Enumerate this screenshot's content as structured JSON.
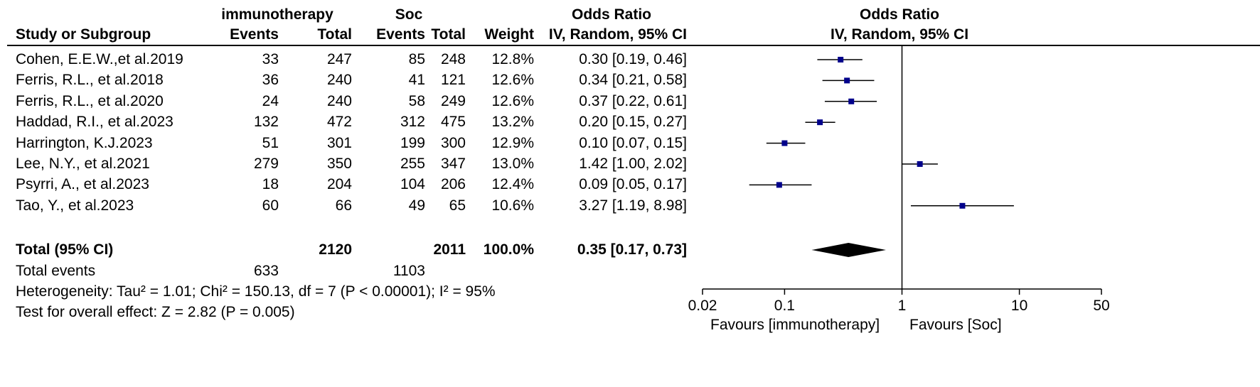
{
  "header": {
    "group1": "immunotherapy",
    "group2": "Soc",
    "or_col_title": "Odds Ratio",
    "plot_title": "Odds Ratio",
    "study_col": "Study or Subgroup",
    "events1": "Events",
    "total1": "Total",
    "events2": "Events",
    "total2": "Total",
    "weight": "Weight",
    "method": "IV, Random, 95% CI",
    "plot_method": "IV, Random, 95% CI"
  },
  "studies": [
    {
      "name": "Cohen, E.E.W.,et al.2019",
      "e1": "33",
      "t1": "247",
      "e2": "85",
      "t2": "248",
      "weight": "12.8%",
      "ci_text": "0.30 [0.19, 0.46]",
      "or": 0.3,
      "lo": 0.19,
      "hi": 0.46
    },
    {
      "name": "Ferris, R.L., et al.2018",
      "e1": "36",
      "t1": "240",
      "e2": "41",
      "t2": "121",
      "weight": "12.6%",
      "ci_text": "0.34 [0.21, 0.58]",
      "or": 0.34,
      "lo": 0.21,
      "hi": 0.58
    },
    {
      "name": "Ferris, R.L., et al.2020",
      "e1": "24",
      "t1": "240",
      "e2": "58",
      "t2": "249",
      "weight": "12.6%",
      "ci_text": "0.37 [0.22, 0.61]",
      "or": 0.37,
      "lo": 0.22,
      "hi": 0.61
    },
    {
      "name": "Haddad, R.I., et al.2023",
      "e1": "132",
      "t1": "472",
      "e2": "312",
      "t2": "475",
      "weight": "13.2%",
      "ci_text": "0.20 [0.15, 0.27]",
      "or": 0.2,
      "lo": 0.15,
      "hi": 0.27
    },
    {
      "name": "Harrington, K.J.2023",
      "e1": "51",
      "t1": "301",
      "e2": "199",
      "t2": "300",
      "weight": "12.9%",
      "ci_text": "0.10 [0.07, 0.15]",
      "or": 0.1,
      "lo": 0.07,
      "hi": 0.15
    },
    {
      "name": "Lee, N.Y., et al.2021",
      "e1": "279",
      "t1": "350",
      "e2": "255",
      "t2": "347",
      "weight": "13.0%",
      "ci_text": "1.42 [1.00, 2.02]",
      "or": 1.42,
      "lo": 1.0,
      "hi": 2.02
    },
    {
      "name": "Psyrri, A., et al.2023",
      "e1": "18",
      "t1": "204",
      "e2": "104",
      "t2": "206",
      "weight": "12.4%",
      "ci_text": "0.09 [0.05, 0.17]",
      "or": 0.09,
      "lo": 0.05,
      "hi": 0.17
    },
    {
      "name": "Tao, Y., et al.2023",
      "e1": "60",
      "t1": "66",
      "e2": "49",
      "t2": "65",
      "weight": "10.6%",
      "ci_text": "3.27 [1.19, 8.98]",
      "or": 3.27,
      "lo": 1.19,
      "hi": 8.98
    }
  ],
  "total": {
    "label": "Total (95% CI)",
    "t1": "2120",
    "t2": "2011",
    "weight": "100.0%",
    "ci_text": "0.35 [0.17, 0.73]",
    "or": 0.35,
    "lo": 0.17,
    "hi": 0.73
  },
  "events_row": {
    "label": "Total events",
    "e1": "633",
    "e2": "1103"
  },
  "heterogeneity": "Heterogeneity: Tau² = 1.01; Chi² = 150.13, df = 7 (P < 0.00001); I² = 95%",
  "overall_effect": "Test for overall effect: Z = 2.82 (P = 0.005)",
  "chart_data": {
    "type": "forest",
    "scale": "log",
    "xlim": [
      0.02,
      50
    ],
    "ticks": [
      0.02,
      0.1,
      1,
      10,
      50
    ],
    "tick_labels": [
      "0.02",
      "0.1",
      "1",
      "10",
      "50"
    ],
    "null_value": 1,
    "favours_left": "Favours [immunotherapy]",
    "favours_right": "Favours [Soc]",
    "marker_color": "#00008b",
    "summary_color": "#000000"
  }
}
